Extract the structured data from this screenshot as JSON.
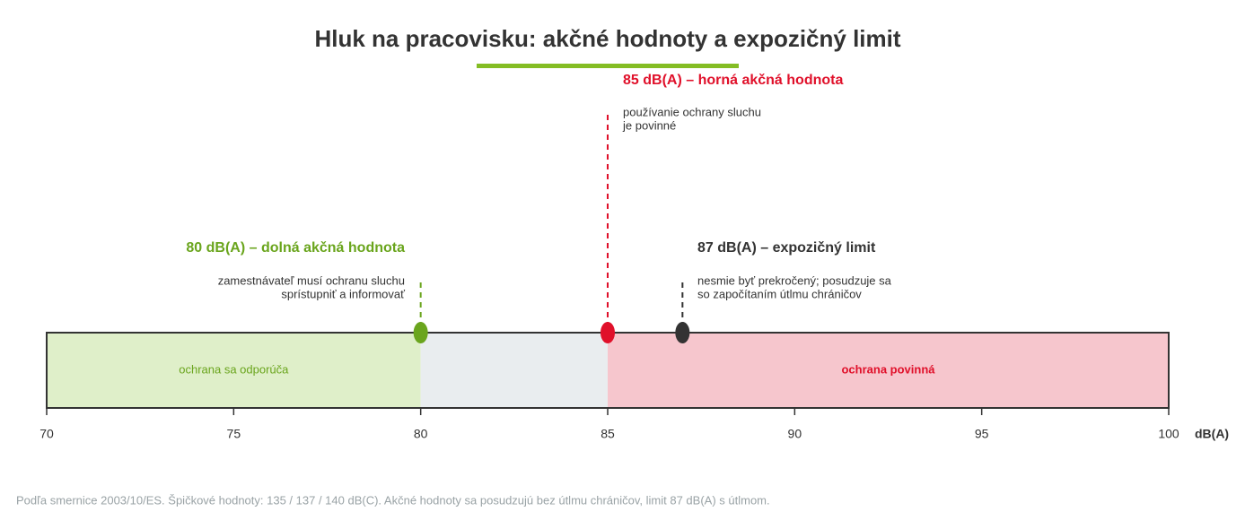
{
  "chart_data": {
    "type": "number-line",
    "title": "Hluk na pracovisku: akčné hodnoty a expozičný limit",
    "unit": "dB(A)",
    "xlim": [
      70,
      100
    ],
    "xticks": [
      70,
      75,
      80,
      85,
      90,
      95,
      100
    ],
    "zones": [
      {
        "start": 70,
        "end": 80,
        "color": "#dfefc9",
        "label": "ochrana sa odporúča",
        "label_color": "#6aa51d"
      },
      {
        "start": 80,
        "end": 85,
        "color": "#e9edef"
      },
      {
        "start": 85,
        "end": 100,
        "color": "#f6c6cd",
        "label": "ochrana povinná",
        "label_color": "#e0102a"
      }
    ],
    "markers": [
      {
        "value": 80,
        "color": "#6aa51d",
        "title": "80 dB(A) – dolná akčná hodnota",
        "description": [
          "zamestnávateľ musí ochranu sluchu",
          "sprístupniť a informovať"
        ]
      },
      {
        "value": 85,
        "color": "#e0102a",
        "title": "85 dB(A) – horná akčná hodnota",
        "description": [
          "používanie ochrany sluchu",
          "je povinné"
        ]
      },
      {
        "value": 87,
        "color": "#333333",
        "title": "87 dB(A) – expozičný limit",
        "description": [
          "nesmie byť prekročený; posudzuje sa",
          "so započítaním útlmu chráničov"
        ]
      }
    ],
    "footnote": "Podľa smernice 2003/10/ES. Špičkové hodnoty: 135 / 137 / 140 dB(C). Akčné hodnoty sa posudzujú bez útlmu chráničov, limit 87 dB(A) s útlmom."
  }
}
